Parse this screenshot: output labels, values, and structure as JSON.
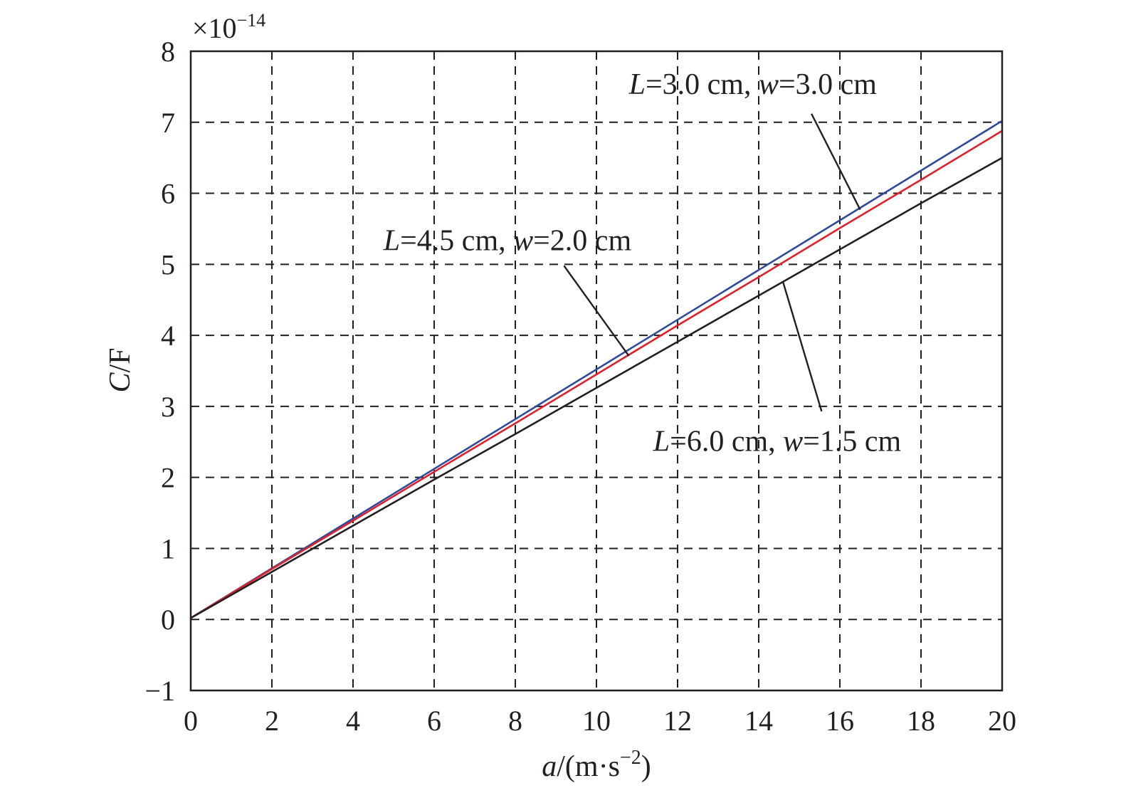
{
  "chart_data": {
    "type": "line",
    "xlabel_parts": [
      "a",
      "/(m·s",
      "−2",
      ")"
    ],
    "ylabel_parts": [
      "C",
      "/F"
    ],
    "y_multiplier_parts": [
      "×10",
      "−14"
    ],
    "xlim": [
      0,
      20
    ],
    "ylim": [
      -1,
      8
    ],
    "x_ticks": [
      0,
      2,
      4,
      6,
      8,
      10,
      12,
      14,
      16,
      18,
      20
    ],
    "y_ticks": [
      -1,
      0,
      1,
      2,
      3,
      4,
      5,
      6,
      7,
      8
    ],
    "x_tick_labels": [
      "0",
      "2",
      "4",
      "6",
      "8",
      "10",
      "12",
      "14",
      "16",
      "18",
      "20"
    ],
    "y_tick_labels": [
      "−1",
      "0",
      "1",
      "2",
      "3",
      "4",
      "5",
      "6",
      "7",
      "8"
    ],
    "grid": true,
    "series": [
      {
        "color": "#2e4b9b",
        "x": [
          0,
          2,
          4,
          6,
          8,
          10,
          12,
          14,
          16,
          18,
          20
        ],
        "values": [
          0.02,
          0.72,
          1.42,
          2.12,
          2.82,
          3.52,
          4.22,
          4.92,
          5.62,
          6.32,
          7.02
        ]
      },
      {
        "color": "#e0202b",
        "x": [
          0,
          2,
          4,
          6,
          8,
          10,
          12,
          14,
          16,
          18,
          20
        ],
        "values": [
          0.02,
          0.71,
          1.39,
          2.08,
          2.76,
          3.45,
          4.14,
          4.82,
          5.51,
          6.19,
          6.88
        ]
      },
      {
        "color": "#231f20",
        "x": [
          0,
          2,
          4,
          6,
          8,
          10,
          12,
          14,
          16,
          18,
          20
        ],
        "values": [
          0.02,
          0.67,
          1.32,
          1.97,
          2.61,
          3.26,
          3.91,
          4.56,
          5.21,
          5.86,
          6.5
        ]
      }
    ],
    "annotations": [
      {
        "parts": [
          {
            "t": "L",
            "i": true
          },
          {
            "t": "=3.0 cm, ",
            "i": false
          },
          {
            "t": "w",
            "i": true
          },
          {
            "t": "=3.0 cm",
            "i": false
          }
        ],
        "x": 10.8,
        "y": 7.4,
        "from": [
          15.3,
          7.12
        ],
        "to": [
          16.5,
          5.77
        ]
      },
      {
        "parts": [
          {
            "t": "L",
            "i": true
          },
          {
            "t": "=4.5 cm, ",
            "i": false
          },
          {
            "t": "w",
            "i": true
          },
          {
            "t": "=2.0 cm",
            "i": false
          }
        ],
        "x": 4.75,
        "y": 5.2,
        "from": [
          9.2,
          4.98
        ],
        "to": [
          10.8,
          3.71
        ]
      },
      {
        "parts": [
          {
            "t": "L",
            "i": true
          },
          {
            "t": "=6.0 cm, ",
            "i": false
          },
          {
            "t": "w",
            "i": true
          },
          {
            "t": "=1.5 cm",
            "i": false
          }
        ],
        "x": 11.4,
        "y": 2.37,
        "from": [
          15.55,
          2.93
        ],
        "to": [
          14.6,
          4.75
        ]
      }
    ]
  }
}
